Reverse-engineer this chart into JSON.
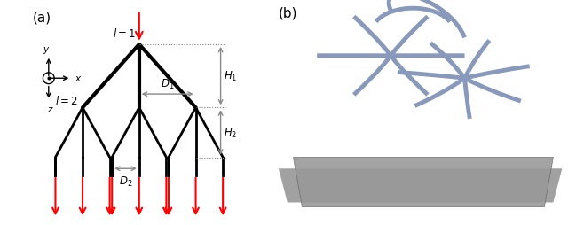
{
  "fig_width": 6.4,
  "fig_height": 2.55,
  "bg_color": "#ffffff",
  "panel_a_label": "(a)",
  "panel_b_label": "(b)",
  "label_fontsize": 11,
  "annotation_fontsize": 9,
  "tree_color": "#000000",
  "red_color": "#ff0000",
  "arrow_color": "#888888",
  "lw": 2.0,
  "H1_label": "H_1",
  "H2_label": "H_2",
  "D1_label": "D_1",
  "D2_label": "D_2",
  "l1_label": "l=1",
  "l2_label": "l=2",
  "coord_color": "#000000"
}
